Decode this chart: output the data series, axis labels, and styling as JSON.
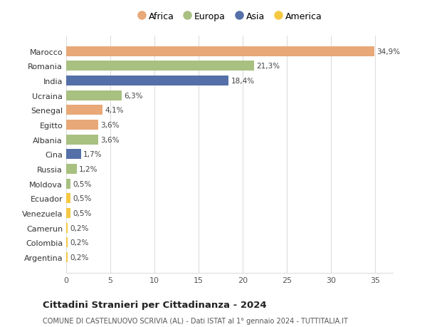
{
  "categories": [
    "Argentina",
    "Colombia",
    "Camerun",
    "Venezuela",
    "Ecuador",
    "Moldova",
    "Russia",
    "Cina",
    "Albania",
    "Egitto",
    "Senegal",
    "Ucraina",
    "India",
    "Romania",
    "Marocco"
  ],
  "values": [
    0.2,
    0.2,
    0.2,
    0.5,
    0.5,
    0.5,
    1.2,
    1.7,
    3.6,
    3.6,
    4.1,
    6.3,
    18.4,
    21.3,
    34.9
  ],
  "labels": [
    "0,2%",
    "0,2%",
    "0,2%",
    "0,5%",
    "0,5%",
    "0,5%",
    "1,2%",
    "1,7%",
    "3,6%",
    "3,6%",
    "4,1%",
    "6,3%",
    "18,4%",
    "21,3%",
    "34,9%"
  ],
  "colors": [
    "#f5c842",
    "#f5c842",
    "#f5c842",
    "#f5c842",
    "#f5c842",
    "#a8c080",
    "#a8c080",
    "#5570a8",
    "#a8c080",
    "#e8a878",
    "#e8a878",
    "#a8c080",
    "#5570a8",
    "#a8c080",
    "#e8a878"
  ],
  "legend": [
    {
      "label": "Africa",
      "color": "#e8a878"
    },
    {
      "label": "Europa",
      "color": "#a8c080"
    },
    {
      "label": "Asia",
      "color": "#5570a8"
    },
    {
      "label": "America",
      "color": "#f5c842"
    }
  ],
  "title": "Cittadini Stranieri per Cittadinanza - 2024",
  "subtitle": "COMUNE DI CASTELNUOVO SCRIVIA (AL) - Dati ISTAT al 1° gennaio 2024 - TUTTITALIA.IT",
  "xlim": [
    0,
    37
  ],
  "xticks": [
    0,
    5,
    10,
    15,
    20,
    25,
    30,
    35
  ],
  "background_color": "#ffffff",
  "grid_color": "#dddddd",
  "bar_height": 0.68
}
